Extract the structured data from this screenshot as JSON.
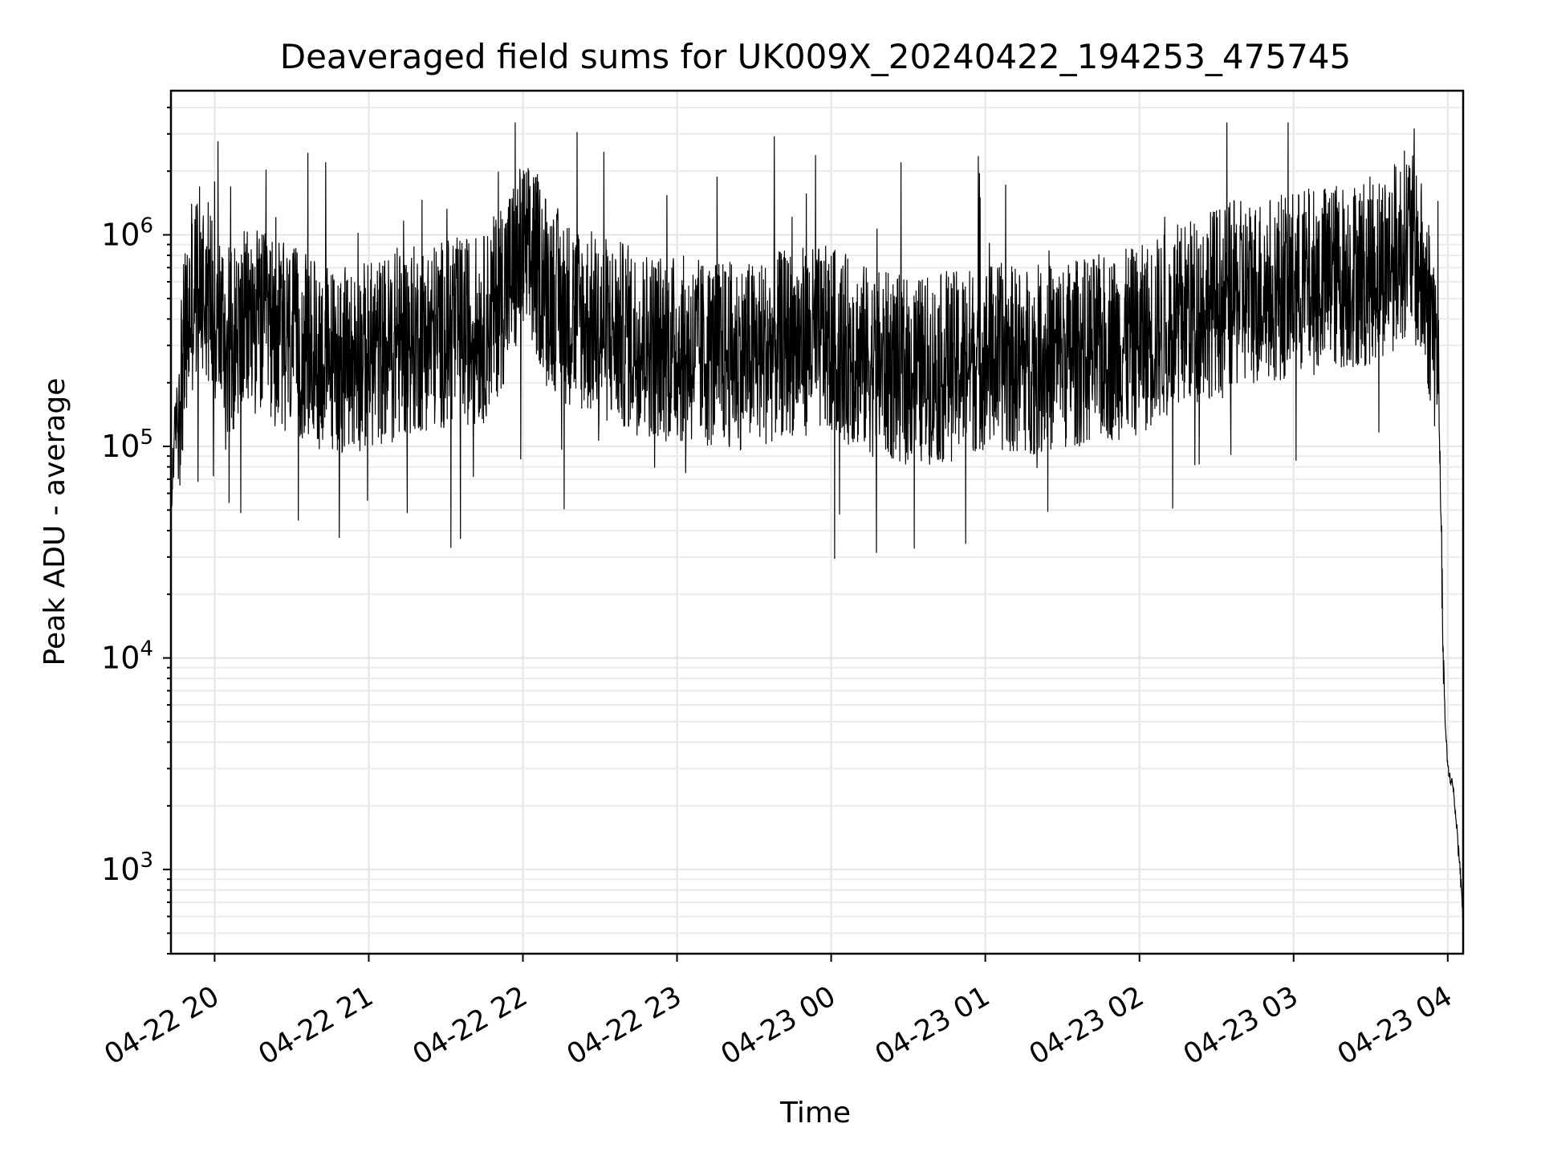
{
  "chart_data": {
    "type": "line",
    "title": "Deaveraged field sums for UK009X_20240422_194253_475745",
    "xlabel": "Time",
    "ylabel": "Peak ADU - average",
    "x_axis": {
      "kind": "datetime",
      "range": [
        "2024-04-22 19:43",
        "2024-04-23 04:06"
      ],
      "ticks": [
        "2024-04-22 20:00",
        "2024-04-22 21:00",
        "2024-04-22 22:00",
        "2024-04-22 23:00",
        "2024-04-23 00:00",
        "2024-04-23 01:00",
        "2024-04-23 02:00",
        "2024-04-23 03:00",
        "2024-04-23 04:00"
      ],
      "tick_labels": [
        "04-22 20",
        "04-22 21",
        "04-22 22",
        "04-22 23",
        "04-23 00",
        "04-23 01",
        "04-23 02",
        "04-23 03",
        "04-23 04"
      ],
      "tick_label_rotation_deg": 30
    },
    "y_axis": {
      "scale": "log",
      "range": [
        400,
        4800000
      ],
      "ticks": [
        1000,
        10000,
        100000,
        1000000
      ],
      "tick_base": "10",
      "tick_exponents": [
        "3",
        "4",
        "5",
        "6"
      ]
    },
    "grid": true,
    "line_color": "#000000",
    "series": [
      {
        "x": [
          "2024-04-22 19:43",
          "2024-04-22 19:44",
          "2024-04-22 19:46",
          "2024-04-22 19:48",
          "2024-04-22 19:50",
          "2024-04-22 19:52",
          "2024-04-22 19:55",
          "2024-04-22 19:58",
          "2024-04-22 20:00",
          "2024-04-22 20:03",
          "2024-04-22 20:06",
          "2024-04-22 20:10",
          "2024-04-22 20:15",
          "2024-04-22 20:20",
          "2024-04-22 20:30",
          "2024-04-22 20:40",
          "2024-04-22 20:50",
          "2024-04-22 21:00",
          "2024-04-22 21:15",
          "2024-04-22 21:30",
          "2024-04-22 21:45",
          "2024-04-22 21:55",
          "2024-04-22 22:00",
          "2024-04-22 22:05",
          "2024-04-22 22:15",
          "2024-04-22 22:30",
          "2024-04-22 22:45",
          "2024-04-22 23:00",
          "2024-04-22 23:15",
          "2024-04-22 23:30",
          "2024-04-22 23:45",
          "2024-04-23 00:00",
          "2024-04-23 00:15",
          "2024-04-23 00:30",
          "2024-04-23 00:45",
          "2024-04-23 01:00",
          "2024-04-23 01:15",
          "2024-04-23 01:30",
          "2024-04-23 01:45",
          "2024-04-23 02:00",
          "2024-04-23 02:15",
          "2024-04-23 02:30",
          "2024-04-23 02:45",
          "2024-04-23 03:00",
          "2024-04-23 03:15",
          "2024-04-23 03:30",
          "2024-04-23 03:40",
          "2024-04-23 03:45",
          "2024-04-23 03:50",
          "2024-04-23 03:53",
          "2024-04-23 03:56",
          "2024-04-23 03:57",
          "2024-04-23 03:58",
          "2024-04-23 03:59",
          "2024-04-23 04:00",
          "2024-04-23 04:02",
          "2024-04-23 04:04",
          "2024-04-23 04:06"
        ],
        "values": [
          50000,
          100000,
          180000,
          300000,
          450000,
          600000,
          700000,
          600000,
          500000,
          400000,
          350000,
          400000,
          450000,
          400000,
          350000,
          300000,
          280000,
          300000,
          350000,
          380000,
          400000,
          700000,
          900000,
          800000,
          500000,
          400000,
          350000,
          320000,
          300000,
          300000,
          350000,
          350000,
          280000,
          250000,
          260000,
          300000,
          280000,
          300000,
          320000,
          350000,
          450000,
          550000,
          600000,
          650000,
          700000,
          750000,
          900000,
          1100000,
          700000,
          500000,
          300000,
          100000,
          15000,
          5000,
          3000,
          2500,
          1400,
          600
        ]
      }
    ]
  }
}
